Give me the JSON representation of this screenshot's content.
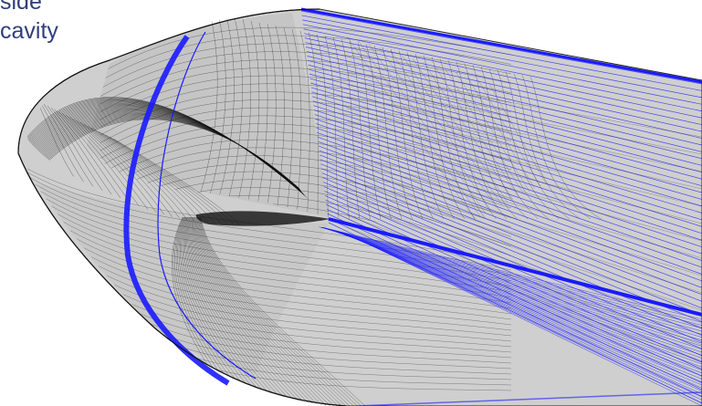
{
  "caption": {
    "line1": "side",
    "line2": "cavity"
  },
  "colors": {
    "background": "#ffffff",
    "surface_fill": "#cfcfcf",
    "mesh_dark": "#111111",
    "mesh_blue": "#1a1aff",
    "caption_text": "#2f3f7a"
  }
}
